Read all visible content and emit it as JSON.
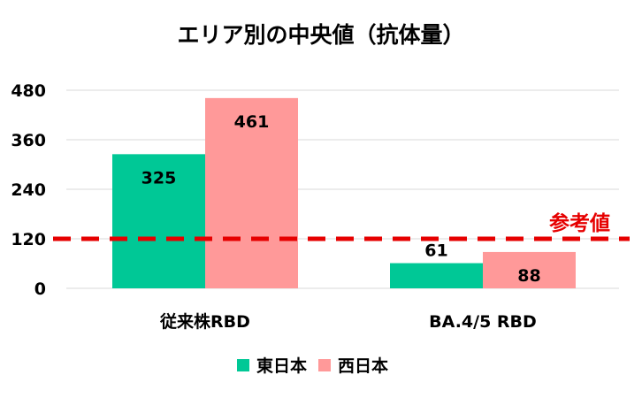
{
  "chart_data": {
    "type": "bar",
    "title": "エリア別の中央値（抗体量）",
    "categories": [
      "従来株RBD",
      "BA.4/5 RBD"
    ],
    "series": [
      {
        "name": "東日本",
        "values": [
          325,
          61
        ],
        "color": "#00c896"
      },
      {
        "name": "西日本",
        "values": [
          461,
          88
        ],
        "color": "#ff9999"
      }
    ],
    "ylim": [
      0,
      480
    ],
    "yticks": [
      "0",
      "120",
      "240",
      "360",
      "480"
    ],
    "grid": true,
    "legend": "bottom",
    "reference_line": {
      "label": "参考値",
      "value": 120,
      "color": "#e60000",
      "style": "dashed"
    }
  }
}
